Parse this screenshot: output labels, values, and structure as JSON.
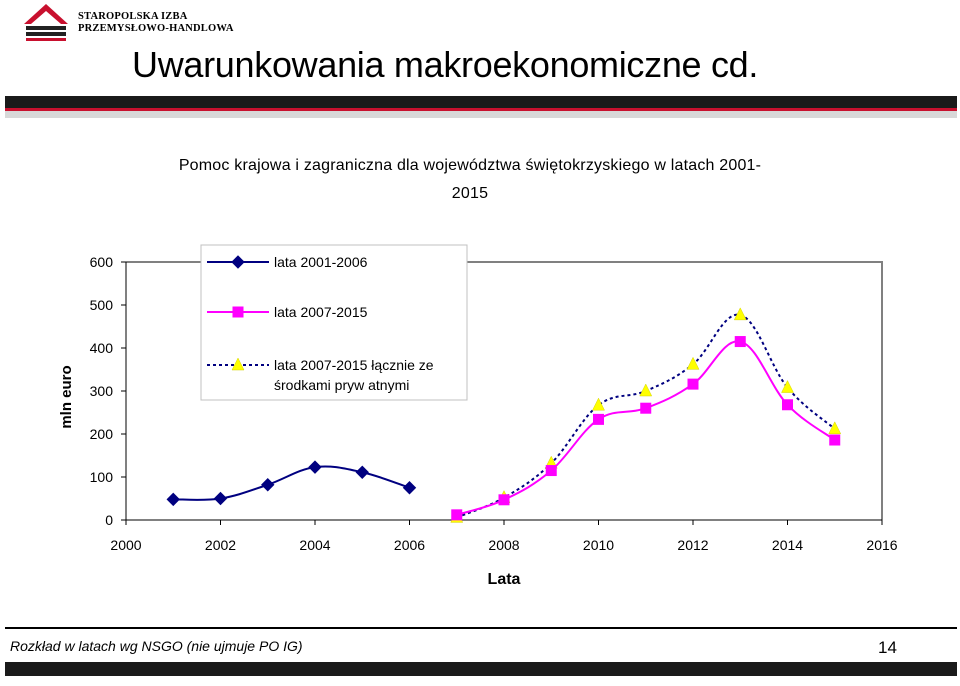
{
  "header": {
    "org_name": "STAROPOLSKA IZBA\nPRZEMYSŁOWO-HANDLOWA",
    "title": "Uwarunkowania makroekonomiczne cd."
  },
  "footer": {
    "note": "Rozkład w latach wg NSGO (nie ujmuje PO IG)",
    "page_number": "14"
  },
  "colors": {
    "series_1": "#000080",
    "series_2": "#ff00ff",
    "series_3_line": "#000080",
    "series_3_marker": "#ffff00",
    "accent_red": "#c8102e"
  },
  "chart_data": {
    "type": "line",
    "title": "Pomoc krajowa i zagraniczna dla województwa świętokrzyskiego w latach 2001-2015",
    "title_lines": [
      "Pomoc krajowa i zagraniczna dla województwa świętokrzyskiego w latach 2001-",
      "2015"
    ],
    "xlabel": "Lata",
    "ylabel": "mln euro",
    "xlim": [
      2000,
      2016
    ],
    "ylim": [
      0,
      600
    ],
    "x_ticks": [
      "2000",
      "2002",
      "2004",
      "2006",
      "2008",
      "2010",
      "2012",
      "2014",
      "2016"
    ],
    "y_ticks": [
      "0",
      "100",
      "200",
      "300",
      "400",
      "500",
      "600"
    ],
    "grid": false,
    "legend_position": "top-left",
    "series": [
      {
        "name": "lata 2001-2006",
        "marker": "diamond",
        "line_style": "solid",
        "x": [
          2001,
          2002,
          2003,
          2004,
          2005,
          2006
        ],
        "y": [
          48,
          50,
          82,
          123,
          111,
          75
        ]
      },
      {
        "name": "lata 2007-2015",
        "marker": "square",
        "line_style": "solid",
        "x": [
          2007,
          2008,
          2009,
          2010,
          2011,
          2012,
          2013,
          2014,
          2015
        ],
        "y": [
          12,
          47,
          115,
          234,
          260,
          316,
          415,
          268,
          186
        ]
      },
      {
        "name": "lata 2007-2015 łącznie ze środkami prywatnymi",
        "name_lines": [
          "lata 2007-2015 łącznie ze",
          "środkami pryw atnymi"
        ],
        "marker": "triangle",
        "line_style": "dotted",
        "x": [
          2007,
          2008,
          2009,
          2010,
          2011,
          2012,
          2013,
          2014,
          2015
        ],
        "y": [
          6,
          52,
          132,
          267,
          300,
          362,
          477,
          308,
          212
        ]
      }
    ]
  }
}
